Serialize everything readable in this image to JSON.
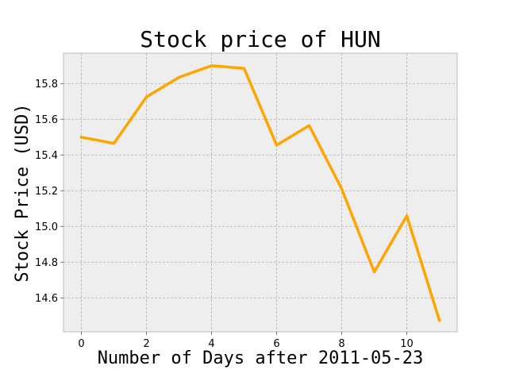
{
  "chart_data": {
    "type": "line",
    "title": "Stock price of HUN",
    "xlabel": "Number of Days after 2011-05-23",
    "ylabel": "Stock Price (USD)",
    "xlim": [
      -0.55,
      11.55
    ],
    "ylim": [
      14.41,
      15.97
    ],
    "xticks": [
      0,
      2,
      4,
      6,
      8,
      10
    ],
    "yticks": [
      14.6,
      14.8,
      15.0,
      15.2,
      15.4,
      15.6,
      15.8
    ],
    "grid": true,
    "series": [
      {
        "x": [
          0,
          1,
          2,
          3,
          4,
          5,
          6,
          7,
          8,
          9,
          10,
          11
        ],
        "values": [
          15.5,
          15.465,
          15.725,
          15.835,
          15.9,
          15.885,
          15.455,
          15.565,
          15.21,
          14.745,
          15.06,
          14.475
        ],
        "color": "#ffa500"
      }
    ],
    "colors": {
      "plot_background": "#eeeeee",
      "grid": "#b2b2b2",
      "frame": "#bcbcbc"
    }
  }
}
